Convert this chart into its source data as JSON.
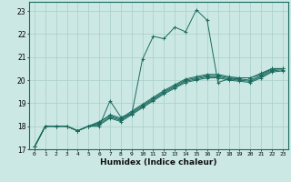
{
  "title": "",
  "xlabel": "Humidex (Indice chaleur)",
  "xlim": [
    -0.5,
    23.5
  ],
  "ylim": [
    17,
    23.4
  ],
  "yticks": [
    17,
    18,
    19,
    20,
    21,
    22,
    23
  ],
  "xticks": [
    0,
    1,
    2,
    3,
    4,
    5,
    6,
    7,
    8,
    9,
    10,
    11,
    12,
    13,
    14,
    15,
    16,
    17,
    18,
    19,
    20,
    21,
    22,
    23
  ],
  "background_color": "#cce8e4",
  "grid_color": "#a8ceca",
  "line_color": "#1a6b5e",
  "series": [
    [
      17.1,
      18.0,
      18.0,
      18.0,
      17.8,
      18.0,
      18.0,
      19.1,
      18.4,
      18.5,
      20.9,
      21.9,
      21.8,
      22.3,
      22.1,
      23.05,
      22.6,
      19.9,
      20.05,
      20.1,
      20.1,
      20.3,
      20.5,
      20.5
    ],
    [
      17.1,
      18.0,
      18.0,
      18.0,
      17.8,
      18.0,
      18.15,
      18.5,
      18.35,
      18.65,
      18.95,
      19.25,
      19.55,
      19.8,
      20.05,
      20.15,
      20.25,
      20.25,
      20.15,
      20.1,
      20.1,
      20.25,
      20.5,
      20.5
    ],
    [
      17.1,
      18.0,
      18.0,
      18.0,
      17.8,
      18.0,
      18.2,
      18.45,
      18.3,
      18.6,
      18.9,
      19.2,
      19.5,
      19.75,
      20.0,
      20.1,
      20.2,
      20.2,
      20.1,
      20.05,
      20.0,
      20.2,
      20.45,
      20.5
    ],
    [
      17.1,
      18.0,
      18.0,
      18.0,
      17.8,
      18.0,
      18.1,
      18.4,
      18.25,
      18.55,
      18.85,
      19.15,
      19.45,
      19.7,
      19.95,
      20.05,
      20.15,
      20.15,
      20.05,
      20.0,
      19.95,
      20.15,
      20.4,
      20.45
    ],
    [
      17.1,
      18.0,
      18.0,
      18.0,
      17.8,
      18.0,
      18.05,
      18.35,
      18.2,
      18.5,
      18.8,
      19.1,
      19.4,
      19.65,
      19.9,
      20.0,
      20.1,
      20.1,
      20.0,
      19.95,
      19.9,
      20.1,
      20.35,
      20.4
    ]
  ]
}
